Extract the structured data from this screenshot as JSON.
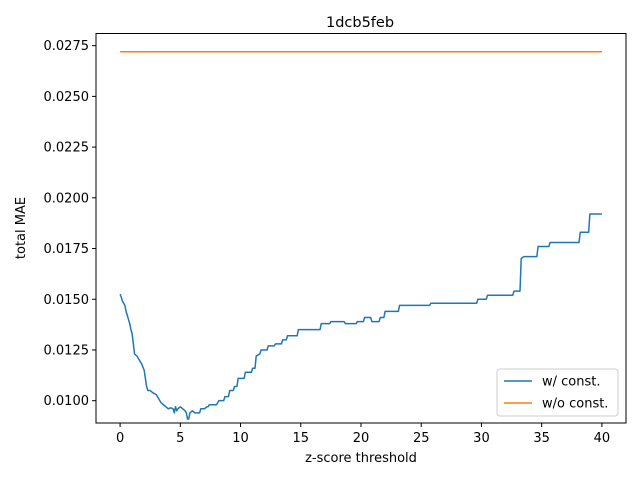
{
  "chart_data": {
    "type": "line",
    "title": "1dcb5feb",
    "xlabel": "z-score threshold",
    "ylabel": "total MAE",
    "xlim": [
      -2,
      42
    ],
    "ylim": [
      0.0089,
      0.0281
    ],
    "xticks": [
      0,
      5,
      10,
      15,
      20,
      25,
      30,
      35,
      40
    ],
    "xtick_labels": [
      "0",
      "5",
      "10",
      "15",
      "20",
      "25",
      "30",
      "35",
      "40"
    ],
    "yticks": [
      0.01,
      0.0125,
      0.015,
      0.0175,
      0.02,
      0.0225,
      0.025,
      0.0275
    ],
    "ytick_labels": [
      "0.0100",
      "0.0125",
      "0.0150",
      "0.0175",
      "0.0200",
      "0.0225",
      "0.0250",
      "0.0275"
    ],
    "grid": false,
    "legend_position": "lower-right",
    "series": [
      {
        "name": "w/ const.",
        "color": "#1f77b4",
        "points": [
          [
            0.0,
            0.01525
          ],
          [
            0.1,
            0.0151
          ],
          [
            0.2,
            0.0149
          ],
          [
            0.3,
            0.0148
          ],
          [
            0.4,
            0.0147
          ],
          [
            0.5,
            0.0144
          ],
          [
            0.6,
            0.0142
          ],
          [
            0.7,
            0.014
          ],
          [
            0.8,
            0.0138
          ],
          [
            0.9,
            0.0135
          ],
          [
            1.0,
            0.0133
          ],
          [
            1.1,
            0.0128
          ],
          [
            1.2,
            0.0123
          ],
          [
            1.4,
            0.0122
          ],
          [
            1.6,
            0.012
          ],
          [
            1.8,
            0.0118
          ],
          [
            2.0,
            0.0115
          ],
          [
            2.1,
            0.0111
          ],
          [
            2.2,
            0.0107
          ],
          [
            2.3,
            0.0105
          ],
          [
            2.5,
            0.0105
          ],
          [
            2.7,
            0.0104
          ],
          [
            3.0,
            0.0103
          ],
          [
            3.2,
            0.0101
          ],
          [
            3.4,
            0.0099
          ],
          [
            3.6,
            0.0098
          ],
          [
            3.8,
            0.0097
          ],
          [
            4.0,
            0.0096
          ],
          [
            4.2,
            0.00965
          ],
          [
            4.4,
            0.0096
          ],
          [
            4.5,
            0.0094
          ],
          [
            4.6,
            0.0097
          ],
          [
            4.7,
            0.0095
          ],
          [
            4.8,
            0.0096
          ],
          [
            5.0,
            0.0097
          ],
          [
            5.2,
            0.0096
          ],
          [
            5.4,
            0.0095
          ],
          [
            5.5,
            0.0094
          ],
          [
            5.6,
            0.0091
          ],
          [
            5.7,
            0.0091
          ],
          [
            5.8,
            0.0094
          ],
          [
            6.0,
            0.0095
          ],
          [
            6.2,
            0.0094
          ],
          [
            6.6,
            0.0094
          ],
          [
            6.7,
            0.0096
          ],
          [
            7.0,
            0.0096
          ],
          [
            7.2,
            0.0097
          ],
          [
            7.3,
            0.0097
          ],
          [
            7.4,
            0.0098
          ],
          [
            8.0,
            0.0098
          ],
          [
            8.2,
            0.01
          ],
          [
            8.6,
            0.01
          ],
          [
            8.7,
            0.0102
          ],
          [
            9.0,
            0.0102
          ],
          [
            9.1,
            0.0105
          ],
          [
            9.4,
            0.0105
          ],
          [
            9.5,
            0.0107
          ],
          [
            9.7,
            0.0107
          ],
          [
            9.8,
            0.0111
          ],
          [
            10.3,
            0.0111
          ],
          [
            10.4,
            0.0114
          ],
          [
            10.9,
            0.0114
          ],
          [
            11.0,
            0.0116
          ],
          [
            11.2,
            0.0116
          ],
          [
            11.3,
            0.0122
          ],
          [
            11.6,
            0.0123
          ],
          [
            11.7,
            0.0125
          ],
          [
            12.2,
            0.0125
          ],
          [
            12.3,
            0.0127
          ],
          [
            12.8,
            0.0127
          ],
          [
            12.9,
            0.0128
          ],
          [
            13.4,
            0.0128
          ],
          [
            13.5,
            0.013
          ],
          [
            13.8,
            0.013
          ],
          [
            13.9,
            0.0132
          ],
          [
            14.7,
            0.0132
          ],
          [
            14.8,
            0.0135
          ],
          [
            16.6,
            0.0135
          ],
          [
            16.7,
            0.0138
          ],
          [
            17.4,
            0.0138
          ],
          [
            17.5,
            0.0139
          ],
          [
            18.6,
            0.0139
          ],
          [
            18.7,
            0.0138
          ],
          [
            19.6,
            0.0138
          ],
          [
            19.7,
            0.0139
          ],
          [
            20.2,
            0.0139
          ],
          [
            20.3,
            0.0141
          ],
          [
            20.8,
            0.0141
          ],
          [
            20.9,
            0.0139
          ],
          [
            21.5,
            0.0139
          ],
          [
            21.6,
            0.0141
          ],
          [
            21.9,
            0.0141
          ],
          [
            22.0,
            0.0144
          ],
          [
            23.1,
            0.0144
          ],
          [
            23.2,
            0.0147
          ],
          [
            25.7,
            0.0147
          ],
          [
            25.8,
            0.0148
          ],
          [
            29.6,
            0.0148
          ],
          [
            29.7,
            0.015
          ],
          [
            30.4,
            0.015
          ],
          [
            30.5,
            0.0152
          ],
          [
            32.6,
            0.0152
          ],
          [
            32.7,
            0.0154
          ],
          [
            33.2,
            0.0154
          ],
          [
            33.3,
            0.017
          ],
          [
            33.5,
            0.0171
          ],
          [
            34.6,
            0.0171
          ],
          [
            34.7,
            0.0176
          ],
          [
            35.6,
            0.0176
          ],
          [
            35.7,
            0.0178
          ],
          [
            38.1,
            0.0178
          ],
          [
            38.2,
            0.0183
          ],
          [
            38.9,
            0.0183
          ],
          [
            39.0,
            0.0192
          ],
          [
            40.0,
            0.0192
          ]
        ]
      },
      {
        "name": "w/o const.",
        "color": "#ff7f0e",
        "points": [
          [
            0.0,
            0.0272
          ],
          [
            40.0,
            0.0272
          ]
        ]
      }
    ]
  }
}
